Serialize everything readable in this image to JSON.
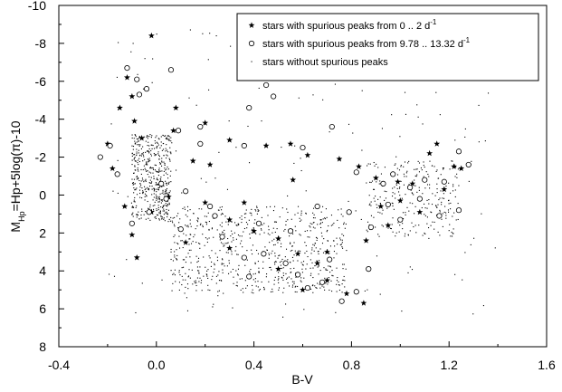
{
  "chart_data": {
    "type": "scatter",
    "title": "",
    "xlabel": "B-V",
    "ylabel_main": "M",
    "ylabel_sub": "Hp",
    "ylabel_rest": "=Hp+5log(π)-10",
    "xlim": [
      -0.4,
      1.6
    ],
    "ylim": [
      8,
      -10
    ],
    "y_axis_inverted": true,
    "x_ticks": [
      {
        "value": -0.4,
        "label": "-0.4"
      },
      {
        "value": 0.0,
        "label": "0.0"
      },
      {
        "value": 0.4,
        "label": "0.4"
      },
      {
        "value": 0.8,
        "label": "0.8"
      },
      {
        "value": 1.2,
        "label": "1.2"
      },
      {
        "value": 1.6,
        "label": "1.6"
      }
    ],
    "y_ticks": [
      {
        "value": -10,
        "label": "-10"
      },
      {
        "value": -8,
        "label": "-8"
      },
      {
        "value": -6,
        "label": "-6"
      },
      {
        "value": -4,
        "label": "-4"
      },
      {
        "value": -2,
        "label": "-2"
      },
      {
        "value": 0,
        "label": "0"
      },
      {
        "value": 2,
        "label": "2"
      },
      {
        "value": 4,
        "label": "4"
      },
      {
        "value": 6,
        "label": "6"
      },
      {
        "value": 8,
        "label": "8"
      }
    ],
    "grid": false,
    "legend_position": "top-right",
    "legend": [
      {
        "marker": "star",
        "label": "stars with spurious peaks from 0 .. 2 d",
        "sup": "-1"
      },
      {
        "marker": "circle",
        "label": "stars with spurious peaks from 9.78 .. 13.32 d",
        "sup": "-1"
      },
      {
        "marker": "dot",
        "label": "stars without spurious peaks",
        "sup": ""
      }
    ],
    "series": [
      {
        "name": "stars with spurious peaks from 0 .. 2 d-1",
        "marker": "star",
        "points": [
          [
            -0.02,
            -8.4
          ],
          [
            -0.12,
            -6.2
          ],
          [
            -0.1,
            -5.2
          ],
          [
            0.08,
            -4.6
          ],
          [
            -0.15,
            -4.6
          ],
          [
            -0.09,
            -3.9
          ],
          [
            0.2,
            -3.8
          ],
          [
            0.07,
            -3.4
          ],
          [
            0.3,
            -2.9
          ],
          [
            0.45,
            -2.6
          ],
          [
            0.55,
            -2.7
          ],
          [
            -0.2,
            -2.7
          ],
          [
            -0.06,
            -3.0
          ],
          [
            0.62,
            -2.1
          ],
          [
            0.75,
            -1.9
          ],
          [
            0.83,
            -1.5
          ],
          [
            0.22,
            -1.6
          ],
          [
            0.9,
            -0.9
          ],
          [
            1.12,
            -2.2
          ],
          [
            1.25,
            -1.4
          ],
          [
            1.18,
            -0.3
          ],
          [
            1.05,
            -0.6
          ],
          [
            0.92,
            0.6
          ],
          [
            1.0,
            0.3
          ],
          [
            0.2,
            0.4
          ],
          [
            -0.13,
            0.6
          ],
          [
            -0.02,
            0.9
          ],
          [
            0.05,
            0.1
          ],
          [
            0.3,
            1.3
          ],
          [
            0.4,
            1.9
          ],
          [
            0.5,
            2.3
          ],
          [
            0.58,
            3.1
          ],
          [
            0.66,
            3.6
          ],
          [
            0.5,
            3.9
          ],
          [
            0.7,
            4.5
          ],
          [
            0.78,
            5.2
          ],
          [
            0.85,
            5.7
          ],
          [
            0.6,
            5.0
          ],
          [
            0.3,
            2.8
          ],
          [
            0.12,
            2.5
          ],
          [
            -0.08,
            3.3
          ],
          [
            -0.1,
            2.1
          ],
          [
            0.95,
            1.6
          ],
          [
            1.08,
            0.9
          ],
          [
            1.15,
            -2.7
          ],
          [
            0.7,
            3.0
          ],
          [
            0.36,
            0.4
          ],
          [
            0.86,
            2.4
          ],
          [
            1.22,
            -1.5
          ],
          [
            0.99,
            -0.7
          ],
          [
            0.15,
            -1.8
          ],
          [
            -0.18,
            -1.4
          ],
          [
            0.56,
            -0.8
          ]
        ]
      },
      {
        "name": "stars with spurious peaks from 9.78 .. 13.32 d-1",
        "marker": "circle",
        "points": [
          [
            -0.12,
            -6.7
          ],
          [
            -0.08,
            -6.1
          ],
          [
            0.06,
            -6.6
          ],
          [
            -0.04,
            -5.6
          ],
          [
            -0.07,
            -5.3
          ],
          [
            0.45,
            -5.8
          ],
          [
            0.48,
            -5.2
          ],
          [
            0.38,
            -4.6
          ],
          [
            0.18,
            -3.6
          ],
          [
            0.09,
            -3.4
          ],
          [
            0.72,
            -3.6
          ],
          [
            -0.19,
            -2.6
          ],
          [
            -0.23,
            -2.0
          ],
          [
            0.18,
            -2.7
          ],
          [
            0.36,
            -2.6
          ],
          [
            0.6,
            -2.5
          ],
          [
            1.24,
            -2.3
          ],
          [
            1.28,
            -1.6
          ],
          [
            -0.16,
            -1.1
          ],
          [
            0.02,
            -0.6
          ],
          [
            0.12,
            -0.2
          ],
          [
            0.82,
            -1.2
          ],
          [
            0.97,
            -1.1
          ],
          [
            1.04,
            -0.4
          ],
          [
            1.18,
            -0.7
          ],
          [
            1.08,
            0.2
          ],
          [
            0.95,
            0.5
          ],
          [
            1.0,
            1.3
          ],
          [
            1.24,
            0.8
          ],
          [
            0.88,
            1.7
          ],
          [
            0.66,
            0.6
          ],
          [
            0.22,
            0.6
          ],
          [
            -0.1,
            1.5
          ],
          [
            0.1,
            1.8
          ],
          [
            0.27,
            2.2
          ],
          [
            0.36,
            3.3
          ],
          [
            0.44,
            3.1
          ],
          [
            0.53,
            3.6
          ],
          [
            0.58,
            4.2
          ],
          [
            0.68,
            4.6
          ],
          [
            0.76,
            5.6
          ],
          [
            0.82,
            5.1
          ],
          [
            0.71,
            3.4
          ],
          [
            0.38,
            4.3
          ],
          [
            0.42,
            1.5
          ],
          [
            -0.03,
            0.9
          ],
          [
            0.04,
            0.2
          ],
          [
            0.55,
            1.9
          ],
          [
            0.79,
            0.9
          ],
          [
            0.93,
            -0.6
          ],
          [
            1.1,
            -0.8
          ],
          [
            1.16,
            1.1
          ],
          [
            0.24,
            1.1
          ],
          [
            0.87,
            3.9
          ],
          [
            0.62,
            4.9
          ]
        ]
      },
      {
        "name": "stars without spurious peaks",
        "marker": "dot",
        "generated": true,
        "count": 1600,
        "clusters": [
          {
            "weight": 0.3,
            "x": [
              -0.1,
              0.06
            ],
            "y": [
              -3.2,
              1.4
            ]
          },
          {
            "weight": 0.42,
            "x": [
              0.06,
              0.78
            ],
            "y": [
              0.6,
              5.2
            ]
          },
          {
            "weight": 0.16,
            "x": [
              0.86,
              1.24
            ],
            "y": [
              -1.8,
              2.2
            ]
          },
          {
            "weight": 0.12,
            "x": [
              -0.2,
              1.4
            ],
            "y": [
              -9.0,
              6.6
            ]
          }
        ]
      }
    ]
  }
}
